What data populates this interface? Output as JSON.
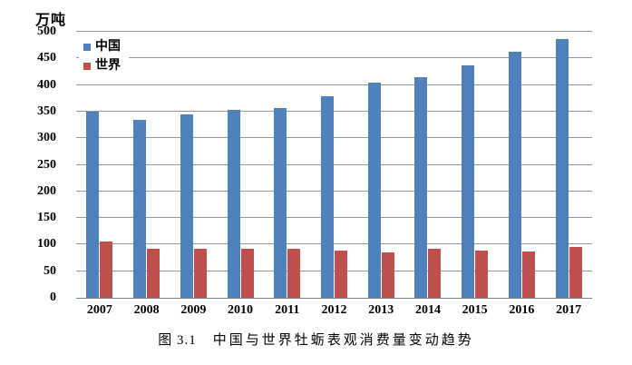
{
  "figure": {
    "unit_label": "万吨",
    "caption_label": "图 3.1",
    "caption_title": "中国与世界牡蛎表观消费量变动趋势"
  },
  "chart_data": {
    "type": "bar",
    "title": "中国与世界牡蛎表观消费量变动趋势",
    "ylabel": "万吨",
    "xlabel": "",
    "categories": [
      "2007",
      "2008",
      "2009",
      "2010",
      "2011",
      "2012",
      "2013",
      "2014",
      "2015",
      "2016",
      "2017"
    ],
    "series": [
      {
        "key": "china",
        "name": "中国",
        "color": "#4F81BD",
        "values": [
          350,
          335,
          345,
          354,
          357,
          378,
          405,
          415,
          437,
          463,
          486
        ]
      },
      {
        "key": "world",
        "name": "世界",
        "color": "#C0504D",
        "values": [
          105,
          92,
          93,
          93,
          93,
          88,
          86,
          92,
          88,
          87,
          96
        ]
      }
    ],
    "ylim": [
      0,
      500
    ],
    "ytick_step": 50,
    "grid": true,
    "legend_position": "top-left-inside",
    "colors": {
      "gridline": "#969696",
      "axis_line": "#7f7f7f",
      "background": "#ffffff",
      "text": "#000000"
    }
  }
}
